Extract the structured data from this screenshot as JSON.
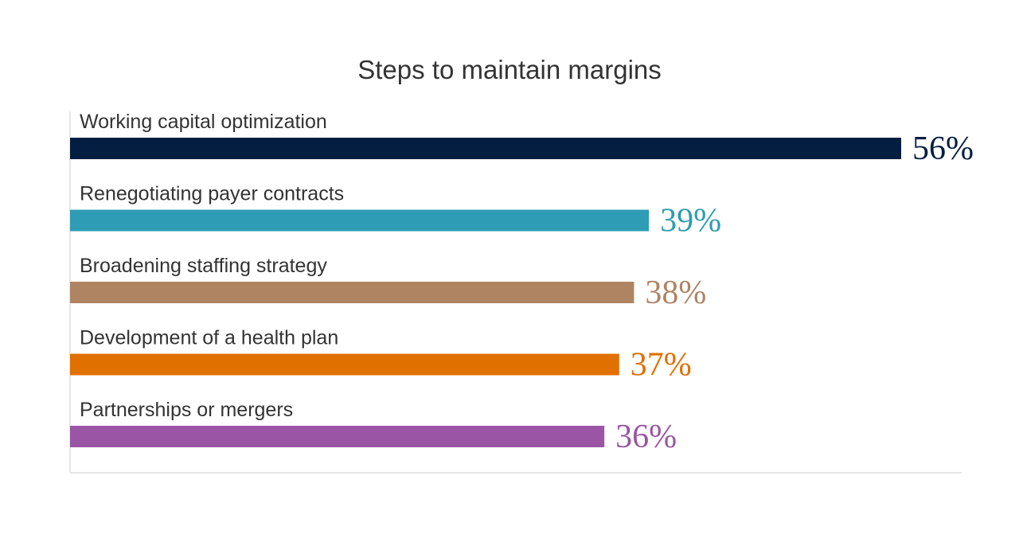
{
  "chart_data": {
    "type": "bar",
    "orientation": "horizontal",
    "title": "Steps to maintain margins",
    "xlabel": "",
    "ylabel": "",
    "xlim": [
      0,
      56
    ],
    "grid": false,
    "legend": "none",
    "categories": [
      "Working capital optimization",
      "Renegotiating payer contracts",
      "Broadening staffing strategy",
      "Development of a health plan",
      "Partnerships or mergers"
    ],
    "values": [
      56,
      39,
      38,
      37,
      36
    ],
    "value_labels": [
      "56%",
      "39%",
      "38%",
      "37%",
      "36%"
    ],
    "colors": [
      "#041e42",
      "#2e9cb4",
      "#ae8463",
      "#e07000",
      "#9a55a4"
    ]
  }
}
